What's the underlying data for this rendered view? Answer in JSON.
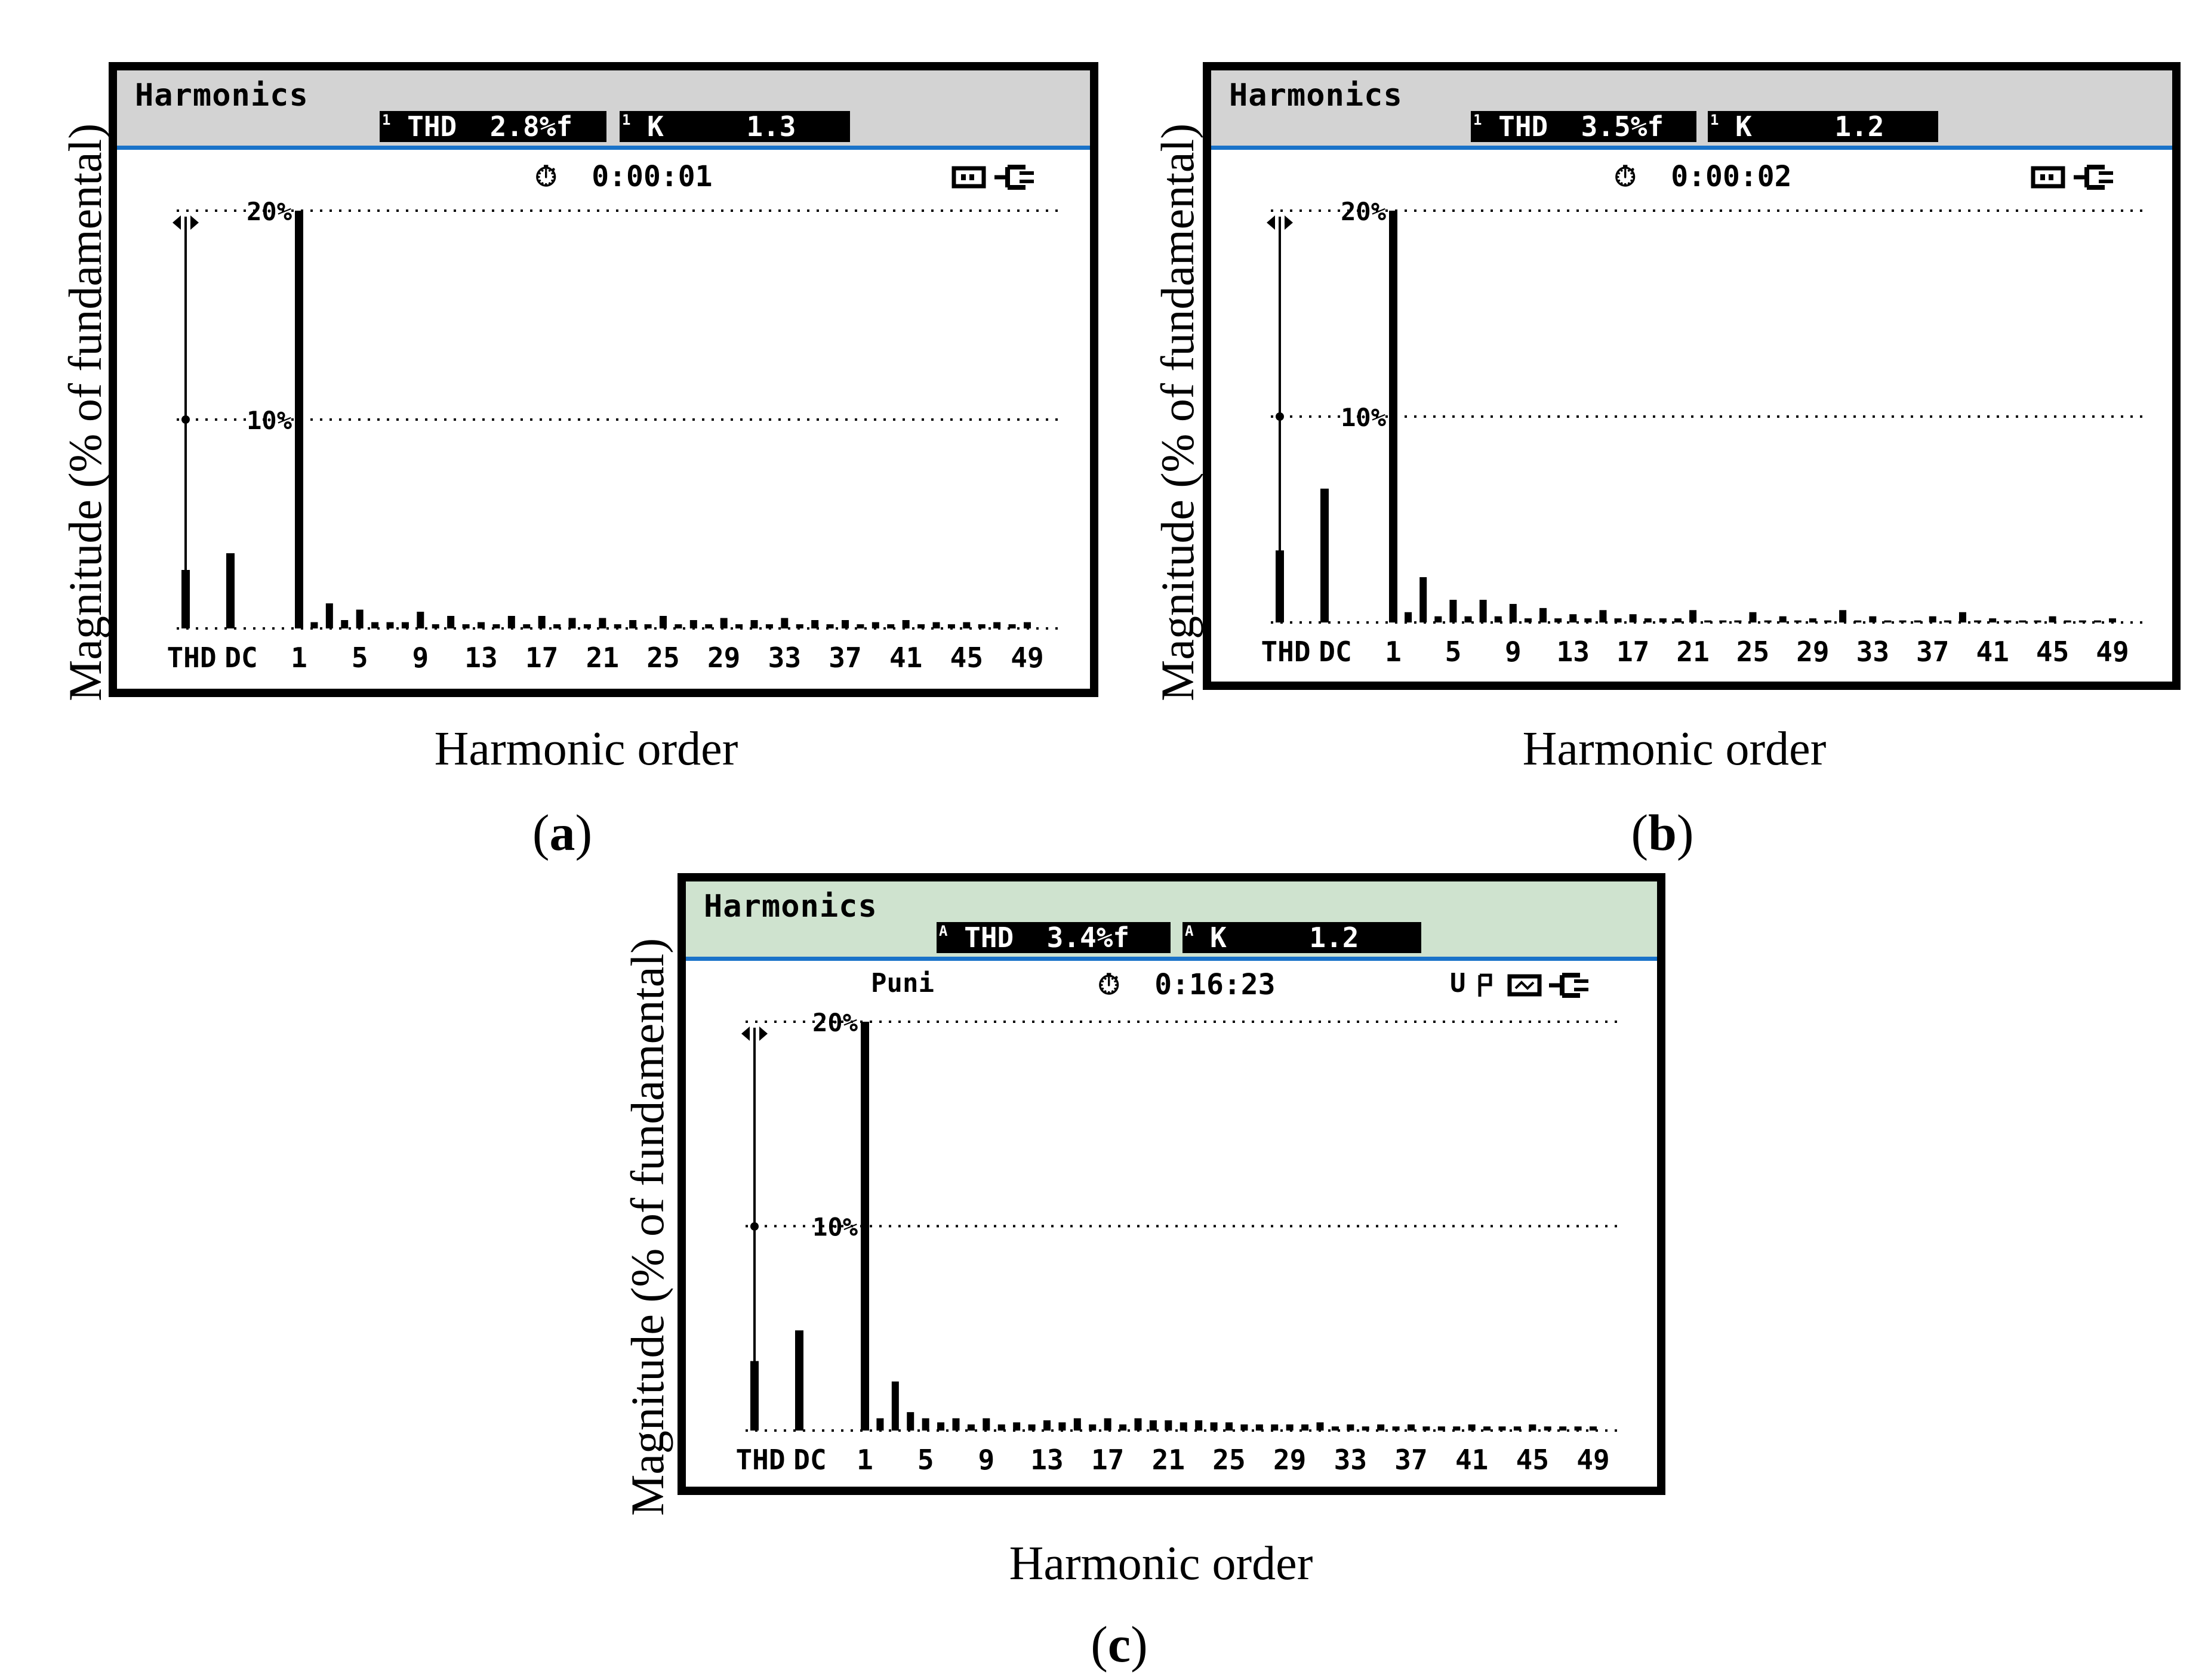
{
  "axis_labels": {
    "y": "Magnitude (% of fundamental)",
    "x": "Harmonic order"
  },
  "colors": {
    "header_a_b": "#d3d3d3",
    "header_c": "#cfe3cf",
    "accent_line": "#1a73c9",
    "bars": "#000000"
  },
  "icons": [
    "stopwatch-icon",
    "battery-icon",
    "plug-icon",
    "cursor-arrows-icon"
  ],
  "panels": [
    {
      "letter": "a",
      "header": "Harmonics",
      "thd_prefix": "1",
      "thd_label": "THD  2.8%f",
      "k_prefix": "1",
      "k_label": "K     1.3",
      "timer": "0:00:01",
      "sub_label": ""
    },
    {
      "letter": "b",
      "header": "Harmonics",
      "thd_prefix": "1",
      "thd_label": "THD  3.5%f",
      "k_prefix": "1",
      "k_label": "K     1.2",
      "timer": "0:00:02",
      "sub_label": ""
    },
    {
      "letter": "c",
      "header": "Harmonics",
      "thd_prefix": "A",
      "thd_label": "THD  3.4%f",
      "k_prefix": "A",
      "k_label": "K     1.2",
      "timer": "0:16:23",
      "sub_label": "Puni",
      "status": "U"
    }
  ],
  "chart_data": [
    {
      "type": "bar",
      "title": "",
      "xlabel": "Harmonic order",
      "ylabel": "Magnitude (% of fundamental)",
      "ylim": [
        0,
        20
      ],
      "yticks": [
        "10%",
        "20%"
      ],
      "grid": true,
      "categories": [
        "THD",
        "DC",
        "1",
        "2",
        "3",
        "4",
        "5",
        "6",
        "7",
        "8",
        "9",
        "10",
        "11",
        "12",
        "13",
        "14",
        "15",
        "16",
        "17",
        "18",
        "19",
        "20",
        "21",
        "22",
        "23",
        "24",
        "25",
        "26",
        "27",
        "28",
        "29",
        "30",
        "31",
        "32",
        "33",
        "34",
        "35",
        "36",
        "37",
        "38",
        "39",
        "40",
        "41",
        "42",
        "43",
        "44",
        "45",
        "46",
        "47",
        "48",
        "49"
      ],
      "tick_labels": [
        "THD",
        "DC",
        "1",
        "5",
        "9",
        "13",
        "17",
        "21",
        "25",
        "29",
        "33",
        "37",
        "41",
        "45",
        "49"
      ],
      "values": [
        2.8,
        3.6,
        20,
        0.3,
        1.2,
        0.4,
        0.9,
        0.3,
        0.3,
        0.3,
        0.8,
        0.2,
        0.6,
        0.2,
        0.3,
        0.2,
        0.6,
        0.2,
        0.6,
        0.2,
        0.5,
        0.2,
        0.5,
        0.2,
        0.4,
        0.2,
        0.6,
        0.2,
        0.4,
        0.2,
        0.5,
        0.2,
        0.4,
        0.2,
        0.5,
        0.2,
        0.4,
        0.2,
        0.4,
        0.2,
        0.3,
        0.2,
        0.4,
        0.2,
        0.3,
        0.2,
        0.3,
        0.2,
        0.3,
        0.2,
        0.3
      ]
    },
    {
      "type": "bar",
      "title": "",
      "xlabel": "Harmonic order",
      "ylabel": "Magnitude (% of fundamental)",
      "ylim": [
        0,
        20
      ],
      "yticks": [
        "10%",
        "20%"
      ],
      "grid": true,
      "categories": [
        "THD",
        "DC",
        "1",
        "2",
        "3",
        "4",
        "5",
        "6",
        "7",
        "8",
        "9",
        "10",
        "11",
        "12",
        "13",
        "14",
        "15",
        "16",
        "17",
        "18",
        "19",
        "20",
        "21",
        "22",
        "23",
        "24",
        "25",
        "26",
        "27",
        "28",
        "29",
        "30",
        "31",
        "32",
        "33",
        "34",
        "35",
        "36",
        "37",
        "38",
        "39",
        "40",
        "41",
        "42",
        "43",
        "44",
        "45",
        "46",
        "47",
        "48",
        "49"
      ],
      "tick_labels": [
        "THD",
        "DC",
        "1",
        "5",
        "9",
        "13",
        "17",
        "21",
        "25",
        "29",
        "33",
        "37",
        "41",
        "45",
        "49"
      ],
      "values": [
        3.5,
        6.5,
        20,
        0.5,
        2.2,
        0.3,
        1.1,
        0.3,
        1.1,
        0.3,
        0.9,
        0.2,
        0.7,
        0.2,
        0.4,
        0.2,
        0.6,
        0.2,
        0.4,
        0.2,
        0.2,
        0.2,
        0.6,
        0.1,
        0.1,
        0.1,
        0.5,
        0.1,
        0.3,
        0.1,
        0.2,
        0.1,
        0.6,
        0.1,
        0.3,
        0.1,
        0.1,
        0.1,
        0.3,
        0.1,
        0.5,
        0.1,
        0.2,
        0.1,
        0.1,
        0.1,
        0.3,
        0.1,
        0.1,
        0.1,
        0.2
      ]
    },
    {
      "type": "bar",
      "title": "",
      "xlabel": "Harmonic order",
      "ylabel": "Magnitude (% of fundamental)",
      "ylim": [
        0,
        20
      ],
      "yticks": [
        "10%",
        "20%"
      ],
      "grid": true,
      "categories": [
        "THD",
        "DC",
        "1",
        "2",
        "3",
        "4",
        "5",
        "6",
        "7",
        "8",
        "9",
        "10",
        "11",
        "12",
        "13",
        "14",
        "15",
        "16",
        "17",
        "18",
        "19",
        "20",
        "21",
        "22",
        "23",
        "24",
        "25",
        "26",
        "27",
        "28",
        "29",
        "30",
        "31",
        "32",
        "33",
        "34",
        "35",
        "36",
        "37",
        "38",
        "39",
        "40",
        "41",
        "42",
        "43",
        "44",
        "45",
        "46",
        "47",
        "48",
        "49"
      ],
      "tick_labels": [
        "THD",
        "DC",
        "1",
        "5",
        "9",
        "13",
        "17",
        "21",
        "25",
        "29",
        "33",
        "37",
        "41",
        "45",
        "49"
      ],
      "values": [
        3.4,
        4.9,
        20,
        0.6,
        2.4,
        0.9,
        0.6,
        0.4,
        0.6,
        0.3,
        0.6,
        0.3,
        0.4,
        0.3,
        0.5,
        0.4,
        0.6,
        0.3,
        0.6,
        0.3,
        0.6,
        0.5,
        0.5,
        0.4,
        0.5,
        0.4,
        0.4,
        0.3,
        0.3,
        0.3,
        0.3,
        0.3,
        0.4,
        0.2,
        0.3,
        0.2,
        0.3,
        0.2,
        0.3,
        0.2,
        0.2,
        0.2,
        0.3,
        0.2,
        0.2,
        0.2,
        0.3,
        0.2,
        0.2,
        0.2,
        0.2
      ]
    }
  ]
}
